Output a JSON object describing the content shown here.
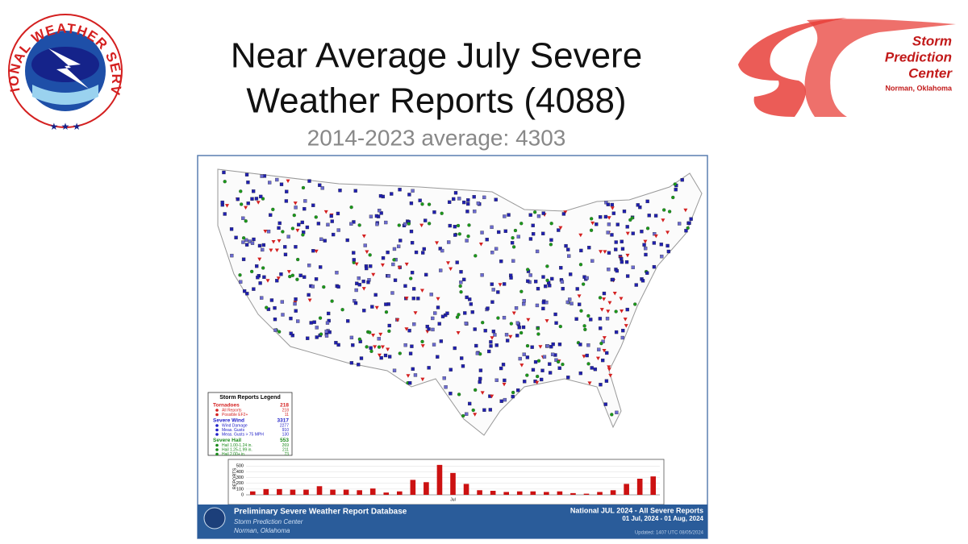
{
  "header": {
    "title_lines": [
      "Near Average July Severe",
      "Weather Reports (4088)"
    ],
    "subtitle": "2014-2023 average: 4303",
    "nws_logo": "NATIONAL WEATHER SERVICE",
    "spc_logo": {
      "lines": [
        "Storm",
        "Prediction",
        "Center"
      ],
      "place": "Norman, Oklahoma"
    }
  },
  "legend": {
    "title": "Storm Reports Legend",
    "groups": [
      {
        "name": "Tornadoes",
        "count": 218,
        "color": "#d42020",
        "items": [
          {
            "label": "All Reports",
            "count": 218
          },
          {
            "label": "Possible EF2+",
            "count": 11
          }
        ]
      },
      {
        "name": "Severe Wind",
        "count": 3317,
        "color": "#2020c8",
        "items": [
          {
            "label": "Wind Damage",
            "count": 2277
          },
          {
            "label": "Meas. Gusts",
            "count": 910
          },
          {
            "label": "Meas. Gusts > 75 MPH",
            "count": 130
          }
        ]
      },
      {
        "name": "Severe Hail",
        "count": 553,
        "color": "#1a8a1a",
        "items": [
          {
            "label": "Hail 1.00-1.24 in.",
            "count": 269
          },
          {
            "label": "Hail 1.25-1.99 in.",
            "count": 211
          },
          {
            "label": "Hail 2.00+ in.",
            "count": 73
          }
        ]
      }
    ]
  },
  "chart_data": {
    "type": "bar",
    "y_label": "REPORTS",
    "x_label": "Jul",
    "color": "#cc1111",
    "values": [
      60,
      100,
      100,
      90,
      90,
      150,
      90,
      90,
      80,
      110,
      40,
      60,
      260,
      220,
      520,
      380,
      190,
      80,
      70,
      50,
      60,
      60,
      50,
      60,
      30,
      20,
      50,
      80,
      190,
      280,
      320
    ],
    "ylim": [
      0,
      560
    ],
    "yticks": [
      0,
      100,
      200,
      300,
      400,
      500
    ]
  },
  "footer": {
    "title": "Preliminary Severe Weather Report Database",
    "org": "Storm Prediction Center",
    "place": "Norman, Oklahoma",
    "product": "National JUL 2024 - All Severe Reports",
    "range": "01 Jul, 2024 - 01 Aug, 2024",
    "updated": "Updated: 1407 UTC 08/05/2024"
  }
}
